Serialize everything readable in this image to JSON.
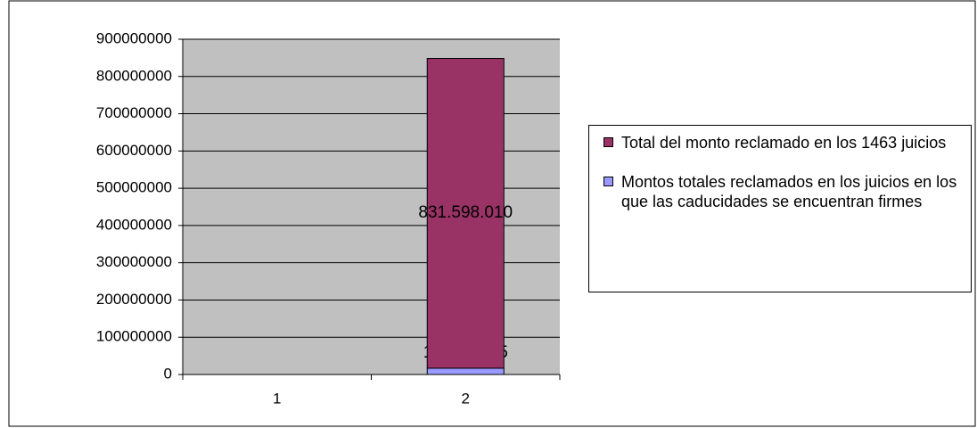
{
  "chart_data": {
    "type": "bar",
    "stacked": true,
    "categories": [
      "1",
      "2"
    ],
    "series": [
      {
        "name": "Montos totales reclamados en los juicios en los que las caducidades se encuentran firmes",
        "color": "#9999ff",
        "values": [
          null,
          16923815
        ],
        "value_labels": [
          null,
          "16.923.815"
        ]
      },
      {
        "name": "Total del monto reclamado en los 1463 juicios",
        "color": "#993366",
        "values": [
          null,
          831598010
        ],
        "value_labels": [
          null,
          "831.598.010"
        ]
      }
    ],
    "ylim": [
      0,
      900000000
    ],
    "yticks": [
      0,
      100000000,
      200000000,
      300000000,
      400000000,
      500000000,
      600000000,
      700000000,
      800000000,
      900000000
    ],
    "grid": true,
    "legend": "right"
  }
}
